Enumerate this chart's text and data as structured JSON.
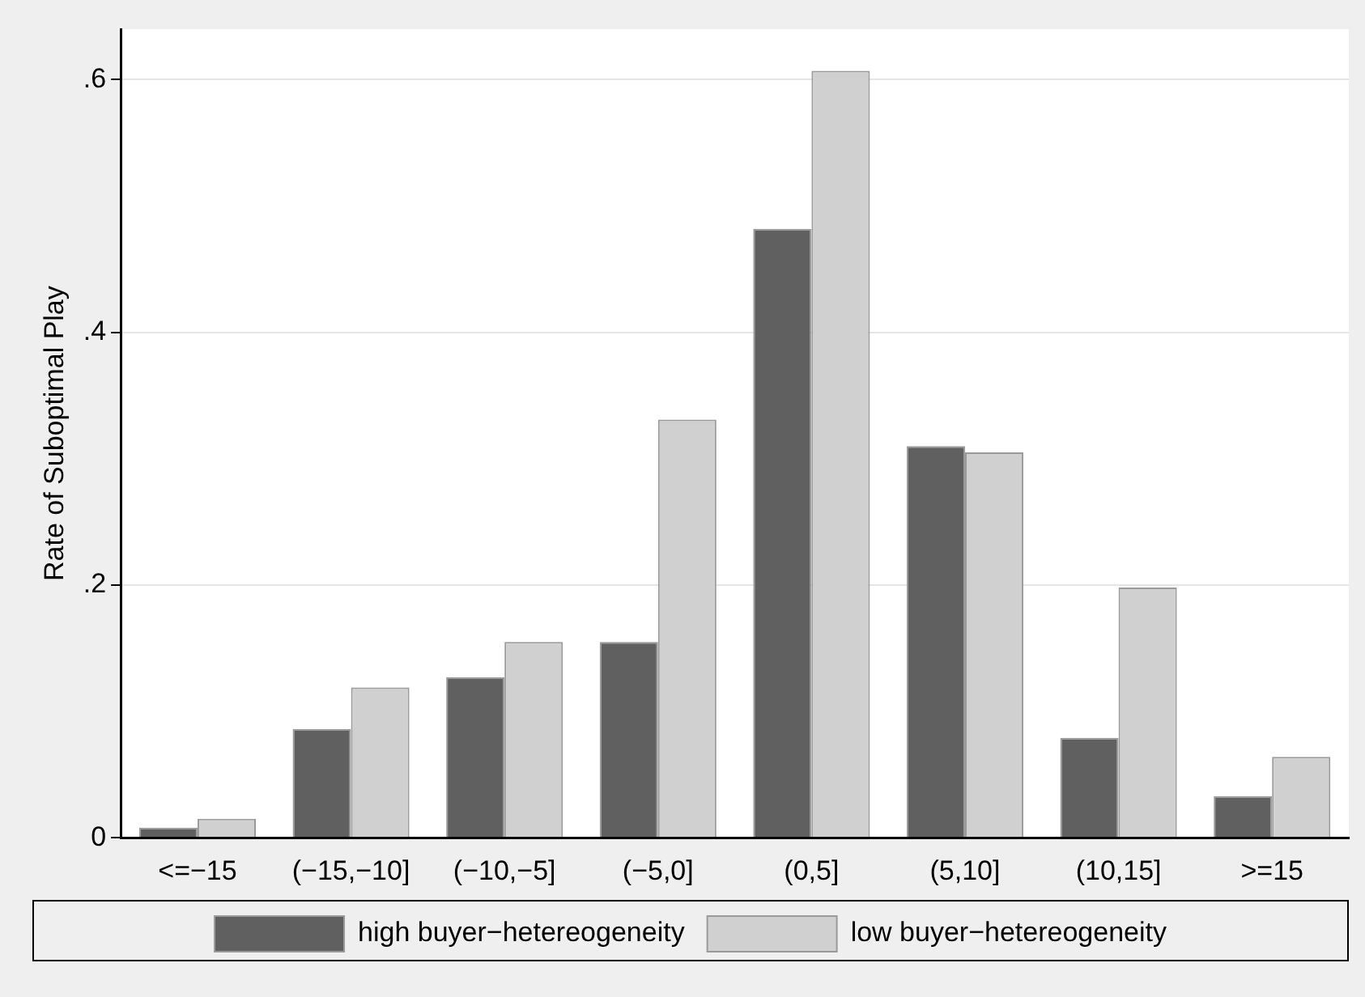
{
  "chart_data": {
    "type": "bar",
    "ylabel": "Rate of Suboptimal Play",
    "categories": [
      "<=−15",
      "(−15,−10]",
      "(−10,−5]",
      "(−5,0]",
      "(0,5]",
      "(5,10]",
      "(10,15]",
      ">=15"
    ],
    "series": [
      {
        "name": "high buyer−hetereogeneity",
        "color": "#606060",
        "values": [
          0.008,
          0.086,
          0.127,
          0.155,
          0.482,
          0.31,
          0.079,
          0.033
        ]
      },
      {
        "name": "low buyer−hetereogeneity",
        "color": "#d0d0d0",
        "values": [
          0.015,
          0.119,
          0.155,
          0.331,
          0.607,
          0.305,
          0.198,
          0.064
        ]
      }
    ],
    "ylim": [
      0,
      0.64
    ],
    "yticks": [
      0,
      {
        "value": 0.2,
        "label": ".2"
      },
      {
        "value": 0.4,
        "label": ".4"
      },
      {
        "value": 0.6,
        "label": ".6"
      }
    ],
    "grid": "y",
    "legend": "bottom"
  }
}
